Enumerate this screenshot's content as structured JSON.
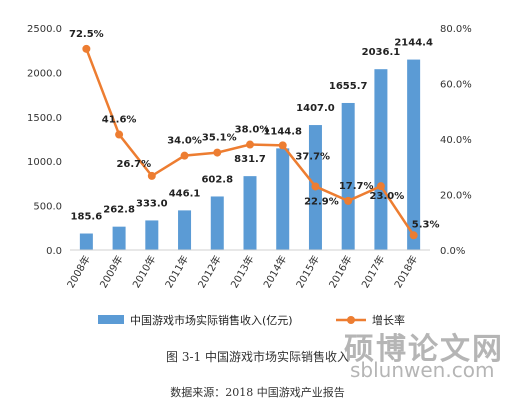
{
  "chart_data": {
    "type": "bar",
    "categories": [
      "2008年",
      "2009年",
      "2010年",
      "2011年",
      "2012年",
      "2013年",
      "2014年",
      "2015年",
      "2016年",
      "2017年",
      "2018年"
    ],
    "series": [
      {
        "name": "中国游戏市场实际销售收入(亿元)",
        "kind": "bar",
        "axis": "left",
        "color": "#5b9bd5",
        "values": [
          185.6,
          262.8,
          333.0,
          446.1,
          602.8,
          831.7,
          1144.8,
          1407.0,
          1655.7,
          2036.1,
          2144.4
        ],
        "labels": [
          "185.6",
          "262.8",
          "333.0",
          "446.1",
          "602.8",
          "831.7",
          "1144.8",
          "1407.0",
          "1655.7",
          "2036.1",
          "2144.4"
        ]
      },
      {
        "name": "增长率",
        "kind": "line",
        "axis": "right",
        "color": "#ed7d31",
        "values": [
          72.5,
          41.6,
          26.7,
          34.0,
          35.1,
          38.0,
          37.7,
          22.9,
          17.7,
          23.0,
          5.3
        ],
        "labels": [
          "72.5%",
          "41.6%",
          "26.7%",
          "34.0%",
          "35.1%",
          "38.0%",
          "37.7%",
          "22.9%",
          "17.7%",
          "23.0%",
          "5.3%"
        ]
      }
    ],
    "y_left": {
      "ylim": [
        0,
        2500
      ],
      "ticks": [
        "0.0",
        "500.0",
        "1000.0",
        "1500.0",
        "2000.0",
        "2500.0"
      ]
    },
    "y_right": {
      "ylim": [
        0,
        80
      ],
      "ticks": [
        "0.0%",
        "20.0%",
        "40.0%",
        "60.0%",
        "80.0%"
      ]
    },
    "grid": false,
    "legend": "bottom"
  },
  "caption": {
    "figure": "图 3-1    中国游戏市场实际销售收入",
    "source": "数据来源：2018 中国游戏产业报告"
  },
  "watermark": {
    "cn": "硕博论文网",
    "url": "sblunwen.com"
  }
}
